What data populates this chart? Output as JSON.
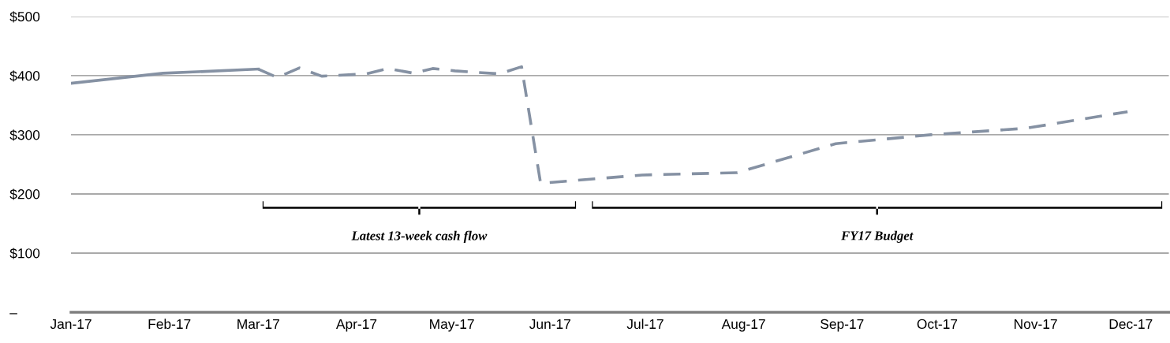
{
  "chart_data": {
    "type": "line",
    "series": [
      {
        "color": "#8591a3",
        "line_style": "solid",
        "x": [
          "2017-01-01",
          "2017-01-30",
          "2017-03-01"
        ],
        "values": [
          387,
          404,
          411
        ]
      },
      {
        "color": "#8591a3",
        "line_style": "dashed",
        "x": [
          "2017-03-01",
          "2017-03-07",
          "2017-03-14",
          "2017-03-21",
          "2017-04-04",
          "2017-04-11",
          "2017-04-19",
          "2017-04-25",
          "2017-05-02",
          "2017-05-16",
          "2017-05-23",
          "2017-05-29",
          "2017-06-30",
          "2017-07-30",
          "2017-08-30",
          "2017-09-29",
          "2017-10-29",
          "2017-11-30"
        ],
        "values": [
          411,
          397,
          413,
          399,
          403,
          412,
          404,
          412,
          408,
          403,
          415,
          218,
          232,
          236,
          285,
          300,
          311,
          339
        ]
      }
    ],
    "xlim": [
      "2017-01-01",
      "2017-12-13"
    ],
    "xticks": [
      {
        "value": "2017-01-01",
        "label": "Jan-17"
      },
      {
        "value": "2017-02-01",
        "label": "Feb-17"
      },
      {
        "value": "2017-03-01",
        "label": "Mar-17"
      },
      {
        "value": "2017-04-01",
        "label": "Apr-17"
      },
      {
        "value": "2017-05-01",
        "label": "May-17"
      },
      {
        "value": "2017-06-01",
        "label": "Jun-17"
      },
      {
        "value": "2017-07-01",
        "label": "Jul-17"
      },
      {
        "value": "2017-08-01",
        "label": "Aug-17"
      },
      {
        "value": "2017-09-01",
        "label": "Sep-17"
      },
      {
        "value": "2017-10-01",
        "label": "Oct-17"
      },
      {
        "value": "2017-11-01",
        "label": "Nov-17"
      },
      {
        "value": "2017-12-01",
        "label": "Dec-17"
      }
    ],
    "ylim": [
      0,
      500
    ],
    "yticks": [
      {
        "value": 0,
        "label": "–"
      },
      {
        "value": 100,
        "label": "$100"
      },
      {
        "value": 200,
        "label": "$200"
      },
      {
        "value": 300,
        "label": "$300"
      },
      {
        "value": 400,
        "label": "$400"
      },
      {
        "value": 500,
        "label": "$500"
      }
    ],
    "grid": "y",
    "annotations": [
      "Latest 13-week cash flow",
      "FY17 Budget"
    ]
  }
}
